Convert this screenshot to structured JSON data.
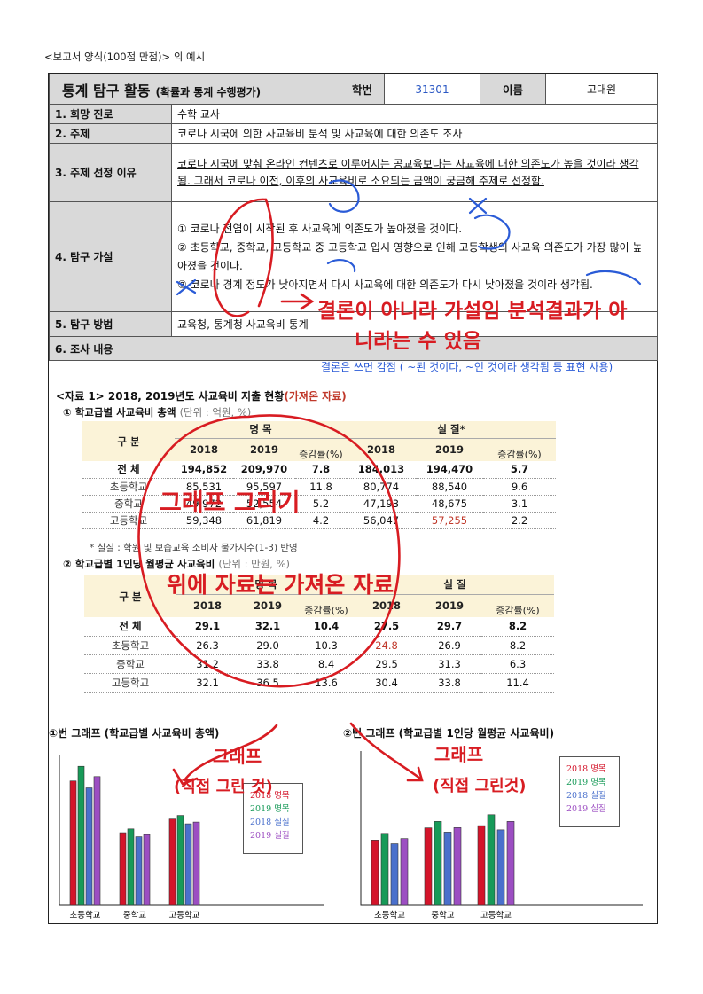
{
  "caption": "<보고서 양식(100점 만점)> 의 예시",
  "header": {
    "title": "통계 탐구 활동",
    "subtitle": "(확률과 통계 수행평가)",
    "student_id_label": "학번",
    "student_id": "31301",
    "name_label": "이름",
    "name": "고대원"
  },
  "rows": {
    "career_label": "1. 희망 진로",
    "career": "수학 교사",
    "topic_label": "2. 주제",
    "topic": "코로나 시국에 의한 사교육비 분석 및 사교육에 대한 의존도 조사",
    "reason_label": "3. 주제 선정 이유",
    "reason": "코로나 시국에 맞춰 온라인 컨텐츠로 이루어지는 공교육보다는 사교육에 대한 의존도가 높을 것이라 생각됨. 그래서 코로나 이전, 이후의 사교육비로 소요되는 금액이 궁금해 주제로 선정함.",
    "hypothesis_label": "4. 탐구 가설",
    "hypotheses": [
      "① 코로나 전염이 시작된 후 사교육에 의존도가 높아졌을 것이다.",
      "② 초등학교, 중학교, 고등학교 중 고등학교 입시 영향으로 인해 고등학생의 사교육 의존도가 가장 많이 높아졌을 것이다.",
      "③ 코로나 경계 정도가 낮아지면서 다시 사교육에 대한 의존도가 다시 낮아졌을 것이라 생각됨."
    ],
    "method_label": "5. 탐구 방법",
    "method": "교육청, 통계청 사교육비 통계",
    "content_label": "6. 조사 내용"
  },
  "source": {
    "title": "<자료 1> 2018, 2019년도 사교육비 지출 현황",
    "tag": "(가져온 자료)"
  },
  "table1": {
    "title": "① 학교급별 사교육비 총액",
    "unit": "(단위 : 억원, %)",
    "group_label": "구  분",
    "nominal_label": "명  목",
    "real_label": "실  질*",
    "col_labels": [
      "2018",
      "2019",
      "증감률(%)",
      "2018",
      "2019",
      "증감률(%)"
    ],
    "rows": [
      {
        "name": "전  체",
        "cells": [
          "194,852",
          "209,970",
          "7.8",
          "184,013",
          "194,470",
          "5.7"
        ]
      },
      {
        "name": "초등학교",
        "cells": [
          "85,531",
          "95,597",
          "11.8",
          "80,774",
          "88,540",
          "9.6"
        ]
      },
      {
        "name": "중학교",
        "cells": [
          "49,972",
          "52,554",
          "5.2",
          "47,193",
          "48,675",
          "3.1"
        ]
      },
      {
        "name": "고등학교",
        "cells": [
          "59,348",
          "61,819",
          "4.2",
          "56,047",
          "57,255",
          "2.2"
        ]
      }
    ],
    "note": "* 실질 : 학원 및 보습교육 소비자 물가지수(1-3) 반영"
  },
  "table2": {
    "title": "② 학교급별 1인당 월평균 사교육비",
    "unit": "(단위 : 만원, %)",
    "group_label": "구  분",
    "nominal_label": "명  목",
    "real_label": "실  질",
    "col_labels": [
      "2018",
      "2019",
      "증감률(%)",
      "2018",
      "2019",
      "증감률(%)"
    ],
    "rows": [
      {
        "name": "전  체",
        "cells": [
          "29.1",
          "32.1",
          "10.4",
          "27.5",
          "29.7",
          "8.2"
        ]
      },
      {
        "name": "초등학교",
        "cells": [
          "26.3",
          "29.0",
          "10.3",
          "24.8",
          "26.9",
          "8.2"
        ]
      },
      {
        "name": "중학교",
        "cells": [
          "31.2",
          "33.8",
          "8.4",
          "29.5",
          "31.3",
          "6.3"
        ]
      },
      {
        "name": "고등학교",
        "cells": [
          "32.1",
          "36.5",
          "13.6",
          "30.4",
          "33.8",
          "11.4"
        ]
      }
    ]
  },
  "chart1_title": "①번 그래프 (학교급별 사교육비 총액)",
  "chart2_title": "②번 그래프 (학교급별 1인당 월평균 사교육비)",
  "legend": [
    "2018 명목",
    "2019 명목",
    "2018 실질",
    "2019 실질"
  ],
  "colors": {
    "s1": "#d4142a",
    "s2": "#179a58",
    "s3": "#4a70cc",
    "s4": "#9c4ec2",
    "ink_red": "#d81c22",
    "ink_blue": "#2a5bd7",
    "red_text": "#c0392b"
  },
  "annotations": {
    "red_1": "결론이 아니라 가설임 분석결과가 아",
    "red_2": "니라는 수 있음",
    "red_3": "그래프 그리기",
    "red_4": "위에 자료는 가져온 자료",
    "red_5": "그래프",
    "red_6": "(직접 그린 것)",
    "red_7": "그래프",
    "red_8": "(직접 그린것)",
    "blue_1": "결론은 쓰면 감점 ( ~된 것이다, ~인 것이라 생각됨 등 표현 사용)"
  },
  "chart_data": [
    {
      "type": "bar",
      "title": "①번 그래프 (학교급별 사교육비 총액)",
      "categories": [
        "초등학교",
        "중학교",
        "고등학교"
      ],
      "series": [
        {
          "name": "2018 명목",
          "values": [
            85531,
            49972,
            59348
          ]
        },
        {
          "name": "2019 명목",
          "values": [
            95597,
            52554,
            61819
          ]
        },
        {
          "name": "2018 실질",
          "values": [
            80774,
            47193,
            56047
          ]
        },
        {
          "name": "2019 실질",
          "values": [
            88540,
            48675,
            57255
          ]
        }
      ],
      "ylim": [
        0,
        100000
      ],
      "legend": "right"
    },
    {
      "type": "bar",
      "title": "②번 그래프 (학교급별 1인당 월평균 사교육비)",
      "categories": [
        "초등학교",
        "중학교",
        "고등학교"
      ],
      "series": [
        {
          "name": "2018 명목",
          "values": [
            26.3,
            31.2,
            32.1
          ]
        },
        {
          "name": "2019 명목",
          "values": [
            29.0,
            33.8,
            36.5
          ]
        },
        {
          "name": "2018 실질",
          "values": [
            24.8,
            29.5,
            30.4
          ]
        },
        {
          "name": "2019 실질",
          "values": [
            26.9,
            31.3,
            33.8
          ]
        }
      ],
      "ylim": [
        0,
        60
      ],
      "legend": "right"
    }
  ]
}
